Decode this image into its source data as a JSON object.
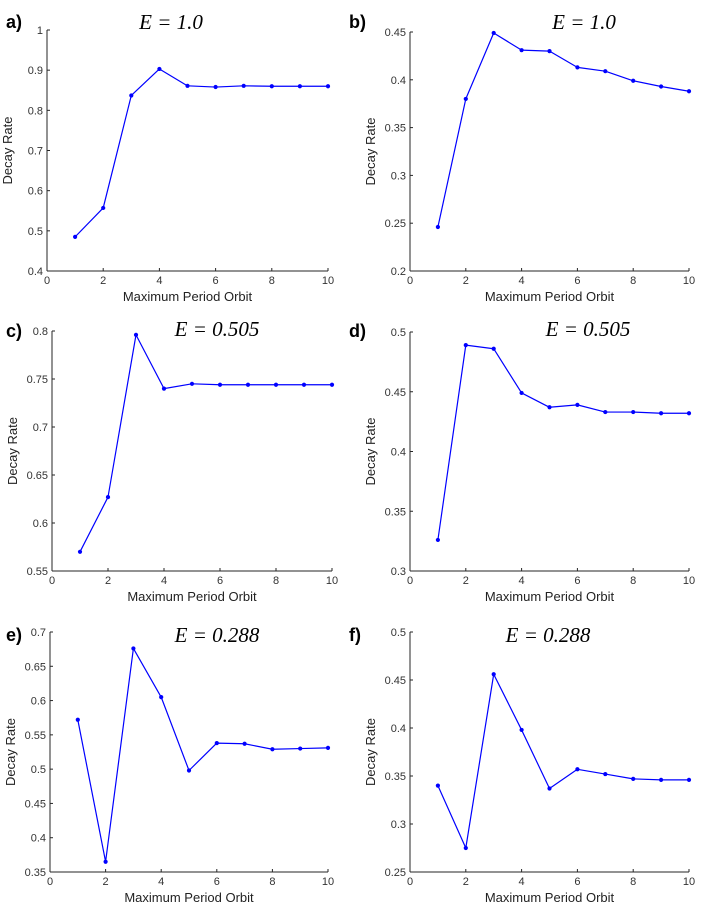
{
  "chart_data": [
    {
      "type": "line",
      "panel_label": "a)",
      "title": "E = 1.0",
      "xlabel": "Maximum Period Orbit",
      "ylabel": "Decay Rate",
      "xlim": [
        0,
        10
      ],
      "ylim": [
        0.4,
        1
      ],
      "xticks": [
        0,
        2,
        4,
        6,
        8,
        10
      ],
      "yticks": [
        0.4,
        0.5,
        0.6,
        0.7,
        0.8,
        0.9,
        1
      ],
      "ytick_labels": [
        "0.4",
        "0.5",
        "0.6",
        "0.7",
        "0.8",
        "0.9",
        "1"
      ],
      "color": "#0000ff",
      "x": [
        1,
        2,
        3,
        4,
        5,
        6,
        7,
        8,
        9,
        10
      ],
      "y": [
        0.485,
        0.557,
        0.837,
        0.903,
        0.861,
        0.858,
        0.861,
        0.86,
        0.86,
        0.86
      ]
    },
    {
      "type": "line",
      "panel_label": "b)",
      "title": "E = 1.0",
      "xlabel": "Maximum Period Orbit",
      "ylabel": "Decay Rate",
      "xlim": [
        0,
        10
      ],
      "ylim": [
        0.2,
        0.45
      ],
      "xticks": [
        0,
        2,
        4,
        6,
        8,
        10
      ],
      "yticks": [
        0.2,
        0.25,
        0.3,
        0.35,
        0.4,
        0.45
      ],
      "ytick_labels": [
        "0.2",
        "0.25",
        "0.3",
        "0.35",
        "0.4",
        "0.45"
      ],
      "color": "#0000ff",
      "x": [
        1,
        2,
        3,
        4,
        5,
        6,
        7,
        8,
        9,
        10
      ],
      "y": [
        0.246,
        0.38,
        0.449,
        0.431,
        0.43,
        0.413,
        0.409,
        0.399,
        0.393,
        0.388
      ]
    },
    {
      "type": "line",
      "panel_label": "c)",
      "title": "E = 0.505",
      "xlabel": "Maximum Period Orbit",
      "ylabel": "Decay Rate",
      "xlim": [
        0,
        10
      ],
      "ylim": [
        0.55,
        0.8
      ],
      "xticks": [
        0,
        2,
        4,
        6,
        8,
        10
      ],
      "yticks": [
        0.55,
        0.6,
        0.65,
        0.7,
        0.75,
        0.8
      ],
      "ytick_labels": [
        "0.55",
        "0.6",
        "0.65",
        "0.7",
        "0.75",
        "0.8"
      ],
      "color": "#0000ff",
      "x": [
        1,
        2,
        3,
        4,
        5,
        6,
        7,
        8,
        9,
        10
      ],
      "y": [
        0.57,
        0.627,
        0.796,
        0.74,
        0.745,
        0.744,
        0.744,
        0.744,
        0.744,
        0.744
      ]
    },
    {
      "type": "line",
      "panel_label": "d)",
      "title": "E = 0.505",
      "xlabel": "Maximum Period Orbit",
      "ylabel": "Decay Rate",
      "xlim": [
        0,
        10
      ],
      "ylim": [
        0.3,
        0.5
      ],
      "xticks": [
        0,
        2,
        4,
        6,
        8,
        10
      ],
      "yticks": [
        0.3,
        0.35,
        0.4,
        0.45,
        0.5
      ],
      "ytick_labels": [
        "0.3",
        "0.35",
        "0.4",
        "0.45",
        "0.5"
      ],
      "color": "#0000ff",
      "x": [
        1,
        2,
        3,
        4,
        5,
        6,
        7,
        8,
        9,
        10
      ],
      "y": [
        0.326,
        0.489,
        0.486,
        0.449,
        0.437,
        0.439,
        0.433,
        0.433,
        0.432,
        0.432
      ]
    },
    {
      "type": "line",
      "panel_label": "e)",
      "title": "E = 0.288",
      "xlabel": "Maximum Period Orbit",
      "ylabel": "Decay Rate",
      "xlim": [
        0,
        10
      ],
      "ylim": [
        0.35,
        0.7
      ],
      "xticks": [
        0,
        2,
        4,
        6,
        8,
        10
      ],
      "yticks": [
        0.35,
        0.4,
        0.45,
        0.5,
        0.55,
        0.6,
        0.65,
        0.7
      ],
      "ytick_labels": [
        "0.35",
        "0.4",
        "0.45",
        "0.5",
        "0.55",
        "0.6",
        "0.65",
        "0.7"
      ],
      "color": "#0000ff",
      "x": [
        1,
        2,
        3,
        4,
        5,
        6,
        7,
        8,
        9,
        10
      ],
      "y": [
        0.572,
        0.365,
        0.676,
        0.605,
        0.498,
        0.538,
        0.537,
        0.529,
        0.53,
        0.531
      ]
    },
    {
      "type": "line",
      "panel_label": "f)",
      "title": "E = 0.288",
      "xlabel": "Maximum Period Orbit",
      "ylabel": "Decay Rate",
      "xlim": [
        0,
        10
      ],
      "ylim": [
        0.25,
        0.5
      ],
      "xticks": [
        0,
        2,
        4,
        6,
        8,
        10
      ],
      "yticks": [
        0.25,
        0.3,
        0.35,
        0.4,
        0.45,
        0.5
      ],
      "ytick_labels": [
        "0.25",
        "0.3",
        "0.35",
        "0.4",
        "0.45",
        "0.5"
      ],
      "color": "#0000ff",
      "x": [
        1,
        2,
        3,
        4,
        5,
        6,
        7,
        8,
        9,
        10
      ],
      "y": [
        0.34,
        0.275,
        0.456,
        0.398,
        0.337,
        0.357,
        0.352,
        0.347,
        0.346,
        0.346
      ]
    }
  ]
}
